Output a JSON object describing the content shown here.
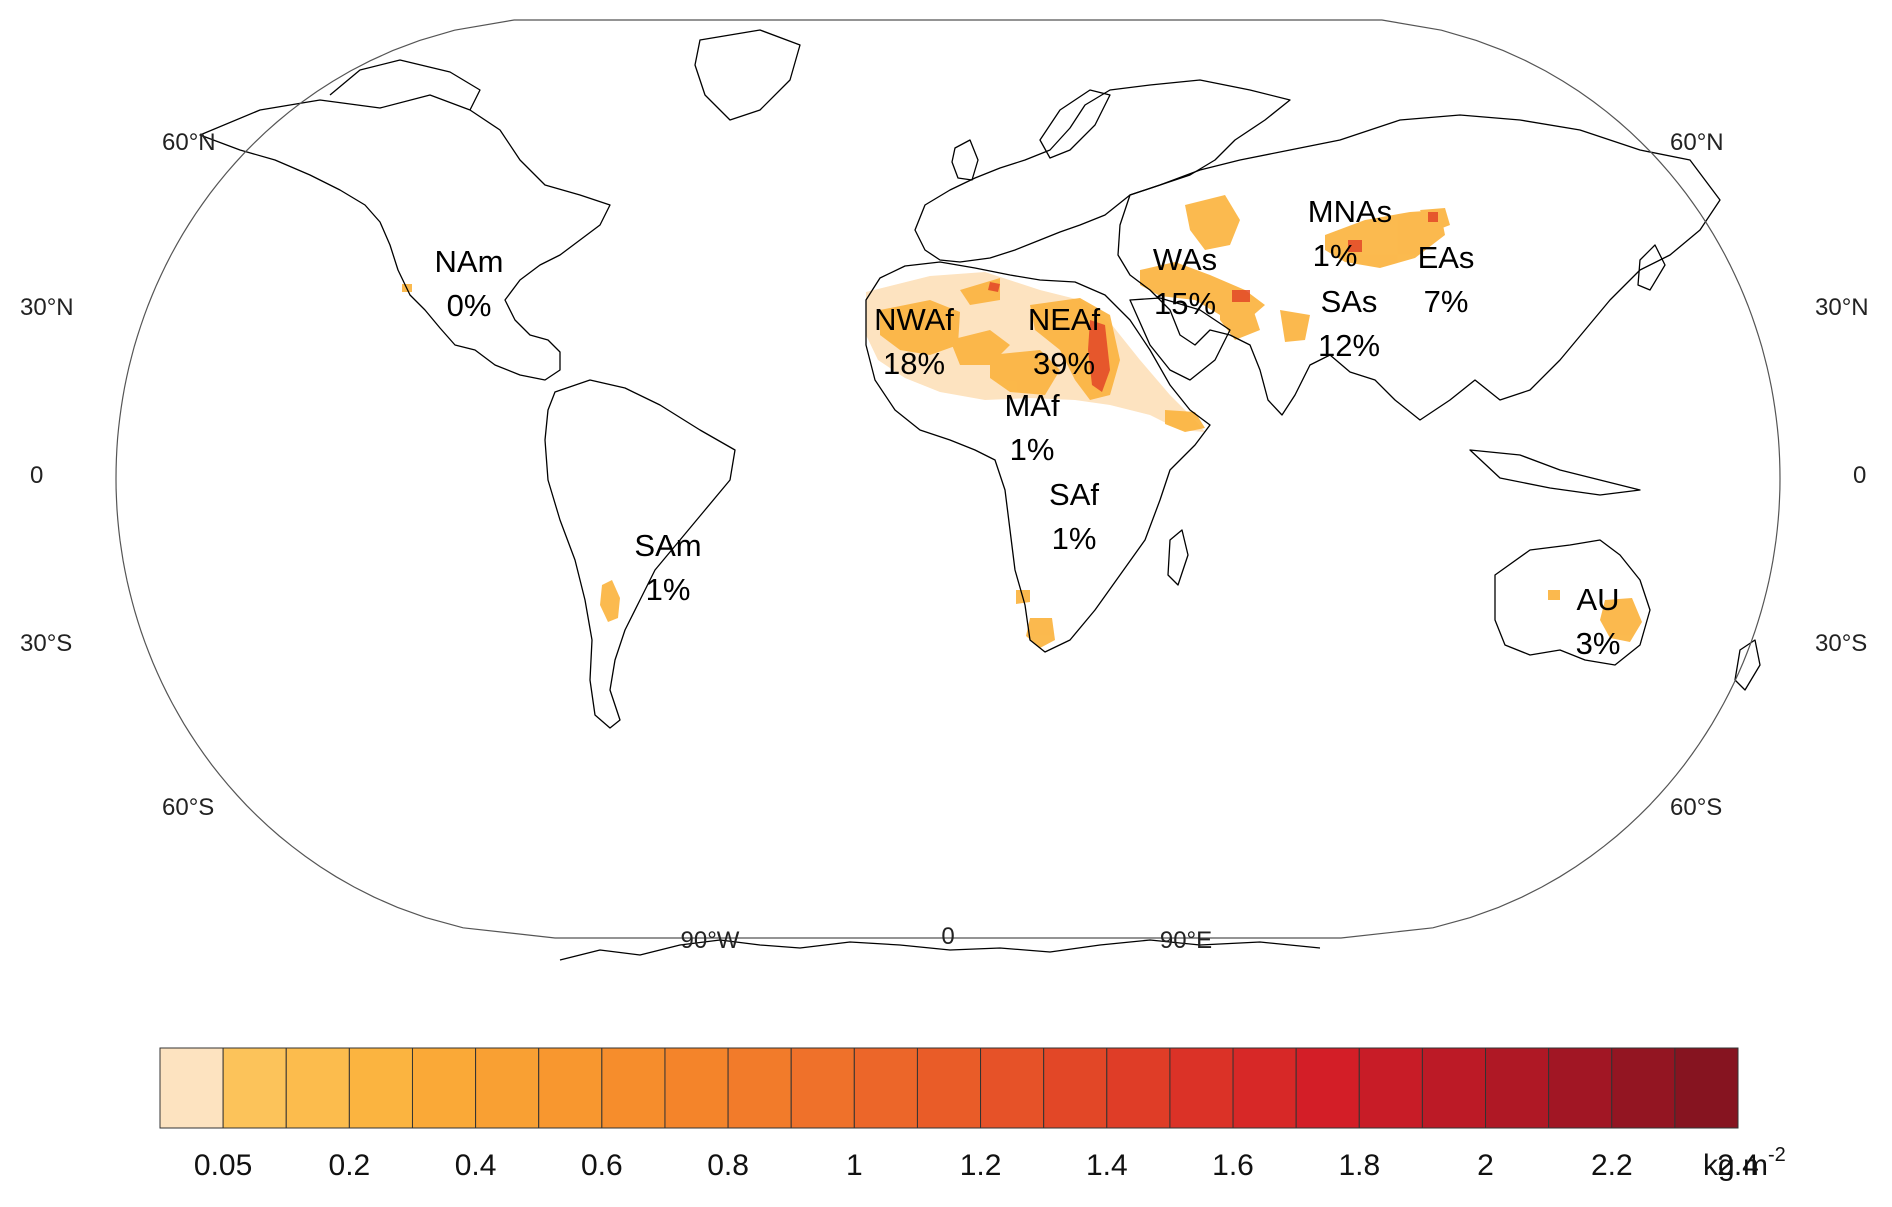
{
  "map": {
    "latitude_labels": [
      {
        "left": "60°N",
        "right": "60°N"
      },
      {
        "left": "30°N",
        "right": "30°N"
      },
      {
        "left": "0",
        "right": "0"
      },
      {
        "left": "30°S",
        "right": "30°S"
      },
      {
        "left": "60°S",
        "right": "60°S"
      }
    ],
    "longitude_labels": [
      "90°W",
      "0",
      "90°E"
    ],
    "regions": [
      {
        "name": "NAm",
        "pct": "0%"
      },
      {
        "name": "NWAf",
        "pct": "18%"
      },
      {
        "name": "NEAf",
        "pct": "39%"
      },
      {
        "name": "MAf",
        "pct": "1%"
      },
      {
        "name": "SAf",
        "pct": "1%"
      },
      {
        "name": "SAm",
        "pct": "1%"
      },
      {
        "name": "WAs",
        "pct": "15%"
      },
      {
        "name": "MNAs",
        "pct": "1%"
      },
      {
        "name": "EAs",
        "pct": "7%"
      },
      {
        "name": "SAs",
        "pct": "12%"
      },
      {
        "name": "AU",
        "pct": "3%"
      }
    ]
  },
  "colorbar": {
    "unit": "kg m",
    "unit_superscript": "-2",
    "tick_labels": [
      "0.05",
      "0.2",
      "0.4",
      "0.6",
      "0.8",
      "1",
      "1.2",
      "1.4",
      "1.6",
      "1.8",
      "2",
      "2.2",
      "2.4"
    ],
    "colors": [
      "#fde3c0",
      "#fcc35a",
      "#fcbc4d",
      "#fbb440",
      "#faa937",
      "#f9a033",
      "#f8972f",
      "#f68d2c",
      "#f4842a",
      "#f27b2a",
      "#ef712a",
      "#ec6629",
      "#e95c28",
      "#e65228",
      "#e24727",
      "#df3d27",
      "#db3227",
      "#d72827",
      "#d31e27",
      "#c81c27",
      "#bc1a26",
      "#af1825",
      "#a11624",
      "#931522",
      "#861420"
    ]
  },
  "colors": {
    "outline": "#000000",
    "land": "#ffffff",
    "dust_light": "#fde3c0",
    "dust_medium": "#fbb440",
    "dust_hot": "#e24727"
  }
}
